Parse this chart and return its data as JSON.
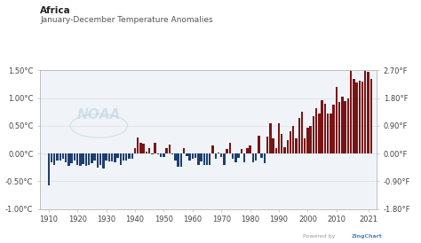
{
  "title": "Africa",
  "subtitle": "January-December Temperature Anomalies",
  "background_color": "#ffffff",
  "plot_bg_color": "#f0f4f8",
  "years": [
    1910,
    1911,
    1912,
    1913,
    1914,
    1915,
    1916,
    1917,
    1918,
    1919,
    1920,
    1921,
    1922,
    1923,
    1924,
    1925,
    1926,
    1927,
    1928,
    1929,
    1930,
    1931,
    1932,
    1933,
    1934,
    1935,
    1936,
    1937,
    1938,
    1939,
    1940,
    1941,
    1942,
    1943,
    1944,
    1945,
    1946,
    1947,
    1948,
    1949,
    1950,
    1951,
    1952,
    1953,
    1954,
    1955,
    1956,
    1957,
    1958,
    1959,
    1960,
    1961,
    1962,
    1963,
    1964,
    1965,
    1966,
    1967,
    1968,
    1969,
    1970,
    1971,
    1972,
    1973,
    1974,
    1975,
    1976,
    1977,
    1978,
    1979,
    1980,
    1981,
    1982,
    1983,
    1984,
    1985,
    1986,
    1987,
    1988,
    1989,
    1990,
    1991,
    1992,
    1993,
    1994,
    1995,
    1996,
    1997,
    1998,
    1999,
    2000,
    2001,
    2002,
    2003,
    2004,
    2005,
    2006,
    2007,
    2008,
    2009,
    2010,
    2011,
    2012,
    2013,
    2014,
    2015,
    2016,
    2017,
    2018,
    2019,
    2020,
    2021,
    2022
  ],
  "values": [
    -0.57,
    -0.15,
    -0.2,
    -0.13,
    -0.12,
    -0.1,
    -0.16,
    -0.22,
    -0.17,
    -0.13,
    -0.2,
    -0.22,
    -0.19,
    -0.22,
    -0.2,
    -0.17,
    -0.12,
    -0.25,
    -0.2,
    -0.27,
    -0.12,
    -0.14,
    -0.14,
    -0.16,
    -0.07,
    -0.2,
    -0.13,
    -0.13,
    -0.09,
    -0.09,
    0.1,
    0.29,
    0.2,
    0.18,
    0.04,
    0.1,
    -0.02,
    0.2,
    -0.02,
    -0.06,
    -0.06,
    0.1,
    0.16,
    -0.02,
    -0.12,
    -0.23,
    -0.23,
    0.1,
    -0.04,
    -0.12,
    -0.1,
    -0.08,
    -0.2,
    -0.14,
    -0.2,
    -0.2,
    -0.21,
    0.15,
    -0.1,
    0.02,
    -0.06,
    -0.2,
    0.08,
    0.2,
    -0.1,
    -0.16,
    -0.08,
    0.08,
    -0.16,
    0.1,
    0.15,
    -0.16,
    -0.12,
    0.32,
    -0.08,
    -0.18,
    0.3,
    0.55,
    0.28,
    0.1,
    0.55,
    0.35,
    0.12,
    0.25,
    0.4,
    0.5,
    0.27,
    0.65,
    0.75,
    0.27,
    0.47,
    0.5,
    0.68,
    0.82,
    0.72,
    0.96,
    0.9,
    0.72,
    0.72,
    0.88,
    1.2,
    0.93,
    1.02,
    0.95,
    1.0,
    1.6,
    1.35,
    1.28,
    1.32,
    1.3,
    1.6,
    1.47,
    1.35
  ],
  "yticks_left": [
    -1.0,
    -0.5,
    0.0,
    0.5,
    1.0,
    1.5
  ],
  "ytick_labels_left": [
    "-1.00°C",
    "-0.50°C",
    "0.00°C",
    "0.50°C",
    "1.00°C",
    "1.50°C"
  ],
  "ytick_labels_right": [
    "-1.80°F",
    "-0.90°F",
    "0.00°F",
    "0.90°F",
    "1.80°F",
    "2.70°F"
  ],
  "yticks_right_C": [
    -1.0,
    -0.5,
    0.0,
    0.5,
    1.0,
    1.5
  ],
  "xticks": [
    1910,
    1920,
    1930,
    1940,
    1950,
    1960,
    1970,
    1980,
    1990,
    2000,
    2010,
    2021
  ],
  "color_positive": "#7a1414",
  "color_negative": "#1e3f6e",
  "grid_color": "#d8d8d8",
  "title_fontsize": 7.5,
  "subtitle_fontsize": 6.5,
  "tick_fontsize": 6
}
